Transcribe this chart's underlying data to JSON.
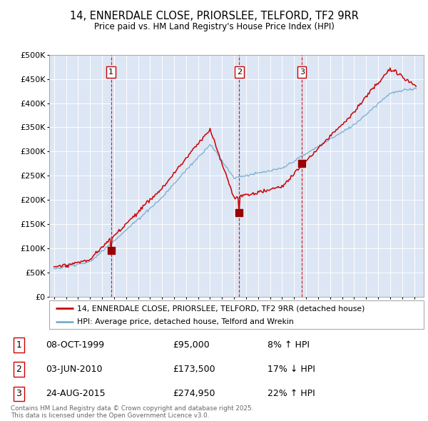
{
  "title": "14, ENNERDALE CLOSE, PRIORSLEE, TELFORD, TF2 9RR",
  "subtitle": "Price paid vs. HM Land Registry's House Price Index (HPI)",
  "bg_color": "#dce6f5",
  "red_line_color": "#cc0000",
  "blue_line_color": "#7aadcf",
  "marker_color": "#990000",
  "dashed_color": "#cc0000",
  "sale_years": [
    1999.75,
    2010.42,
    2015.65
  ],
  "sale_prices": [
    95000,
    173500,
    274950
  ],
  "sale_labels": [
    "1",
    "2",
    "3"
  ],
  "sale_pct": [
    "8% ↑ HPI",
    "17% ↓ HPI",
    "22% ↑ HPI"
  ],
  "sale_date_strs": [
    "08-OCT-1999",
    "03-JUN-2010",
    "24-AUG-2015"
  ],
  "sale_price_strs": [
    "£95,000",
    "£173,500",
    "£274,950"
  ],
  "ylim": [
    0,
    500000
  ],
  "yticks": [
    0,
    50000,
    100000,
    150000,
    200000,
    250000,
    300000,
    350000,
    400000,
    450000,
    500000
  ],
  "xlim_start": 1994.6,
  "xlim_end": 2025.8,
  "legend_label_red": "14, ENNERDALE CLOSE, PRIORSLEE, TELFORD, TF2 9RR (detached house)",
  "legend_label_blue": "HPI: Average price, detached house, Telford and Wrekin",
  "footer_text": "Contains HM Land Registry data © Crown copyright and database right 2025.\nThis data is licensed under the Open Government Licence v3.0."
}
